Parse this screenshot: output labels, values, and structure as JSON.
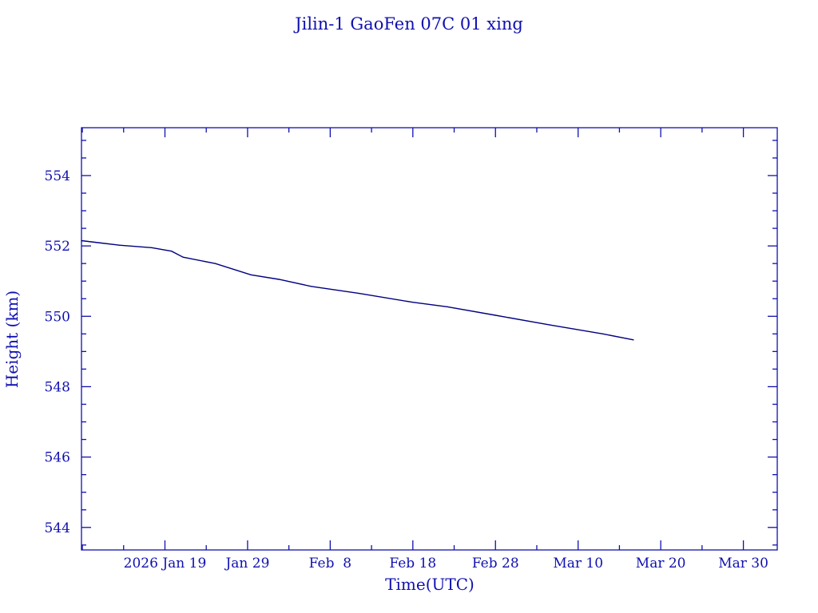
{
  "chart_data": {
    "type": "line",
    "title": "Jilin-1 GaoFen 07C 01 xing",
    "xlabel": "Time(UTC)",
    "ylabel": "Height (km)",
    "x_units": "days since 2026-01-01 (Jan 1 = 0)",
    "xlim": [
      7.9,
      92.1
    ],
    "ylim": [
      543.36,
      555.36
    ],
    "yticks": [
      544,
      546,
      548,
      550,
      552,
      554
    ],
    "ytick_labels": [
      "544",
      "546",
      "548",
      "550",
      "552",
      "554"
    ],
    "y_minor_step": 0.5,
    "xticks": [
      18,
      28,
      38,
      48,
      58,
      68,
      78,
      88
    ],
    "xtick_labels": [
      "2026 Jan 19",
      "Jan 29",
      "Feb  8",
      "Feb 18",
      "Feb 28",
      "Mar 10",
      "Mar 20",
      "Mar 30"
    ],
    "x_minor_step": 5,
    "grid": false,
    "colors": {
      "axis": "#1010b0",
      "line": "#000080",
      "text": "#1010b0"
    },
    "series": [
      {
        "name": "Height",
        "x": [
          7.9,
          12.5,
          16.4,
          18.8,
          20.2,
          24.1,
          28.4,
          31.8,
          35.7,
          41.5,
          48.0,
          52.2,
          58.0,
          64.7,
          71.0,
          74.7
        ],
        "y": [
          552.15,
          552.02,
          551.95,
          551.85,
          551.68,
          551.5,
          551.18,
          551.05,
          550.85,
          550.65,
          550.4,
          550.27,
          550.03,
          549.75,
          549.5,
          549.33
        ]
      }
    ]
  }
}
